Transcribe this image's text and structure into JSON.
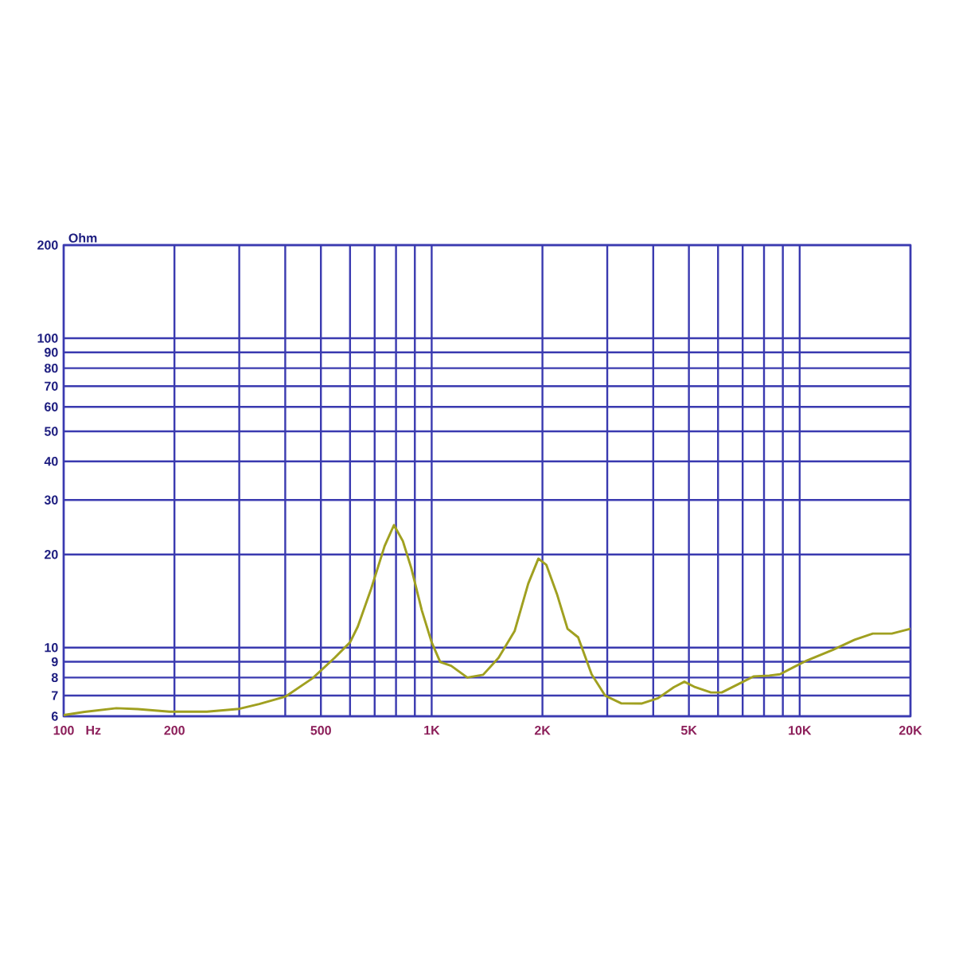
{
  "chart_data": {
    "type": "line",
    "xlabel": "Hz",
    "ylabel": "Ohm",
    "log": "xy",
    "grid": true,
    "xlim": [
      100,
      20000
    ],
    "ylim": [
      6,
      200
    ],
    "xticks": [
      100,
      200,
      {
        "value": 300,
        "label": null
      },
      {
        "value": 400,
        "label": null
      },
      500,
      {
        "value": 600,
        "label": null
      },
      {
        "value": 700,
        "label": null
      },
      {
        "value": 800,
        "label": null
      },
      {
        "value": 900,
        "label": null
      },
      {
        "value": 1000,
        "label": "1K"
      },
      {
        "value": 2000,
        "label": "2K"
      },
      {
        "value": 3000,
        "label": null
      },
      {
        "value": 4000,
        "label": null
      },
      {
        "value": 5000,
        "label": "5K"
      },
      {
        "value": 6000,
        "label": null
      },
      {
        "value": 7000,
        "label": null
      },
      {
        "value": 8000,
        "label": null
      },
      {
        "value": 9000,
        "label": null
      },
      {
        "value": 10000,
        "label": "10K"
      },
      {
        "value": 20000,
        "label": "20K"
      }
    ],
    "yticks": [
      6,
      7,
      8,
      9,
      10,
      20,
      30,
      40,
      50,
      60,
      70,
      80,
      90,
      100,
      200
    ],
    "x": [
      100,
      114,
      139,
      159,
      194,
      245,
      300,
      340,
      400,
      475,
      545,
      600,
      630,
      685,
      745,
      790,
      835,
      880,
      940,
      1000,
      1055,
      1130,
      1250,
      1380,
      1520,
      1680,
      1830,
      1950,
      2050,
      2190,
      2340,
      2500,
      2720,
      2960,
      3270,
      3730,
      4120,
      4550,
      4860,
      5200,
      5740,
      6140,
      6780,
      7490,
      8270,
      8840,
      9600,
      10450,
      12300,
      14100,
      15800,
      17800,
      20000
    ],
    "series": [
      {
        "color": "#a0a020",
        "values": [
          6.05,
          6.2,
          6.37,
          6.33,
          6.21,
          6.21,
          6.34,
          6.57,
          6.94,
          7.97,
          9.27,
          10.4,
          11.7,
          15.5,
          21.3,
          24.9,
          22.1,
          18.1,
          13.2,
          10.4,
          8.98,
          8.73,
          8.0,
          8.17,
          9.27,
          11.3,
          16.1,
          19.4,
          18.5,
          14.9,
          11.5,
          10.8,
          8.2,
          7.0,
          6.61,
          6.6,
          6.86,
          7.45,
          7.76,
          7.45,
          7.16,
          7.16,
          7.6,
          8.07,
          8.12,
          8.2,
          8.63,
          9.08,
          9.83,
          10.6,
          11.1,
          11.1,
          11.5
        ]
      }
    ]
  }
}
